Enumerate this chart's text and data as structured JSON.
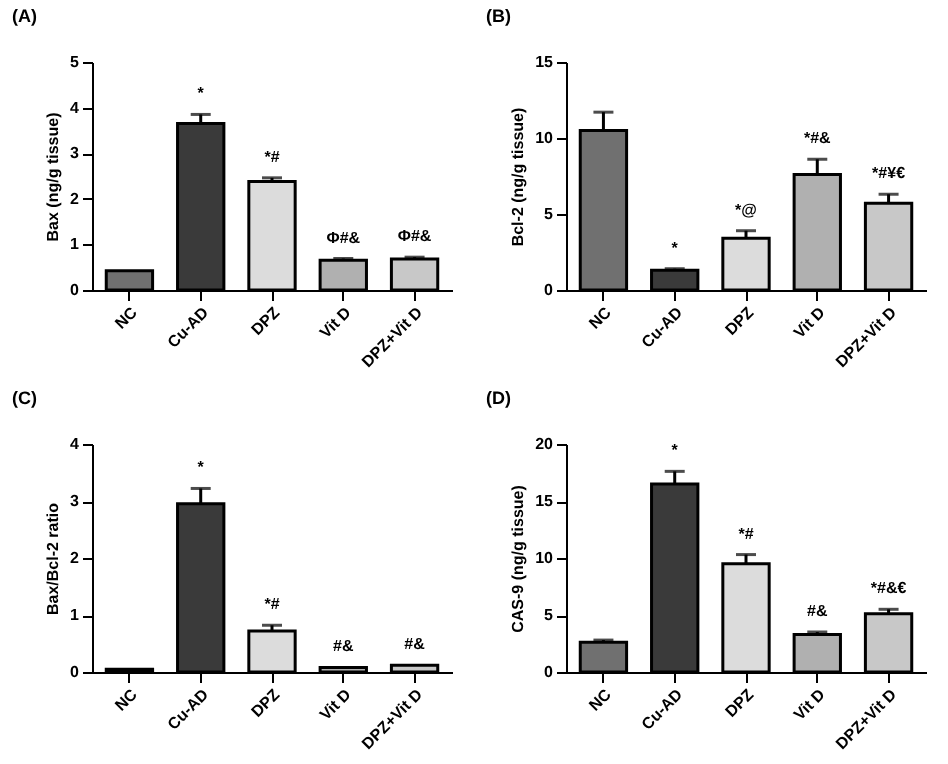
{
  "chart_data": [
    {
      "type": "bar",
      "title": "(A)",
      "ylabel": "Bax (ng/g tissue)",
      "categories": [
        "NC",
        "Cu-AD",
        "DPZ",
        "Vit D",
        "DPZ+Vit D"
      ],
      "values": [
        0.42,
        3.65,
        2.38,
        0.65,
        0.68
      ],
      "errors": [
        null,
        0.2,
        0.08,
        0.04,
        0.04
      ],
      "colors": [
        "#707070",
        "#3a3a3a",
        "#dcdcdc",
        "#b0b0b0",
        "#c8c8c8"
      ],
      "ylim": [
        0,
        5
      ],
      "yticks": [
        0,
        1,
        2,
        3,
        4,
        5
      ],
      "grid": false,
      "annotations": [
        {
          "text": "*",
          "x": "Cu-AD",
          "y": 3.85
        },
        {
          "text": "*#",
          "x": "DPZ",
          "y": 2.46
        },
        {
          "text": "Φ#&",
          "x": "Vit D",
          "y": 0.69
        },
        {
          "text": "Φ#&",
          "x": "DPZ+Vit D",
          "y": 0.72
        }
      ]
    },
    {
      "type": "bar",
      "title": "(B)",
      "ylabel": "Bcl-2 (ng/g tissue)",
      "categories": [
        "NC",
        "Cu-AD",
        "DPZ",
        "Vit D",
        "DPZ+Vit D"
      ],
      "values": [
        10.5,
        1.3,
        3.4,
        7.6,
        5.7
      ],
      "errors": [
        1.2,
        0.1,
        0.5,
        1.0,
        0.6
      ],
      "colors": [
        "#707070",
        "#3a3a3a",
        "#dcdcdc",
        "#b0b0b0",
        "#c8c8c8"
      ],
      "ylim": [
        0,
        15
      ],
      "yticks": [
        0,
        5,
        10,
        15
      ],
      "grid": false,
      "annotations": [
        {
          "text": "*",
          "x": "Cu-AD",
          "y": 1.4
        },
        {
          "text": "*@",
          "x": "DPZ",
          "y": 3.9
        },
        {
          "text": "*#&",
          "x": "Vit D",
          "y": 8.6
        },
        {
          "text": "*#¥€",
          "x": "DPZ+Vit D",
          "y": 6.3
        }
      ]
    },
    {
      "type": "bar",
      "title": "(C)",
      "ylabel": "Bax/Bcl-2 ratio",
      "categories": [
        "NC",
        "Cu-AD",
        "DPZ",
        "Vit D",
        "DPZ+Vit D"
      ],
      "values": [
        0.05,
        2.95,
        0.72,
        0.08,
        0.12
      ],
      "errors": [
        null,
        0.27,
        0.1,
        null,
        null
      ],
      "colors": [
        "#707070",
        "#3a3a3a",
        "#dcdcdc",
        "#b0b0b0",
        "#c8c8c8"
      ],
      "ylim": [
        0,
        4
      ],
      "yticks": [
        0,
        1,
        2,
        3,
        4
      ],
      "grid": false,
      "annotations": [
        {
          "text": "*",
          "x": "Cu-AD",
          "y": 3.22
        },
        {
          "text": "*#",
          "x": "DPZ",
          "y": 0.82
        },
        {
          "text": "#&",
          "x": "Vit D",
          "y": 0.08
        },
        {
          "text": "#&",
          "x": "DPZ+Vit D",
          "y": 0.12
        }
      ]
    },
    {
      "type": "bar",
      "title": "(D)",
      "ylabel": "CAS-9 (ng/g tissue)",
      "categories": [
        "NC",
        "Cu-AD",
        "DPZ",
        "Vit D",
        "DPZ+Vit D"
      ],
      "values": [
        2.6,
        16.5,
        9.5,
        3.3,
        5.1
      ],
      "errors": [
        0.2,
        1.1,
        0.8,
        0.2,
        0.4
      ],
      "colors": [
        "#707070",
        "#3a3a3a",
        "#dcdcdc",
        "#b0b0b0",
        "#c8c8c8"
      ],
      "ylim": [
        0,
        20
      ],
      "yticks": [
        0,
        5,
        10,
        15,
        20
      ],
      "grid": false,
      "annotations": [
        {
          "text": "*",
          "x": "Cu-AD",
          "y": 17.6
        },
        {
          "text": "*#",
          "x": "DPZ",
          "y": 10.3
        },
        {
          "text": "#&",
          "x": "Vit D",
          "y": 3.5
        },
        {
          "text": "*#&€",
          "x": "DPZ+Vit D",
          "y": 5.5
        }
      ]
    }
  ]
}
